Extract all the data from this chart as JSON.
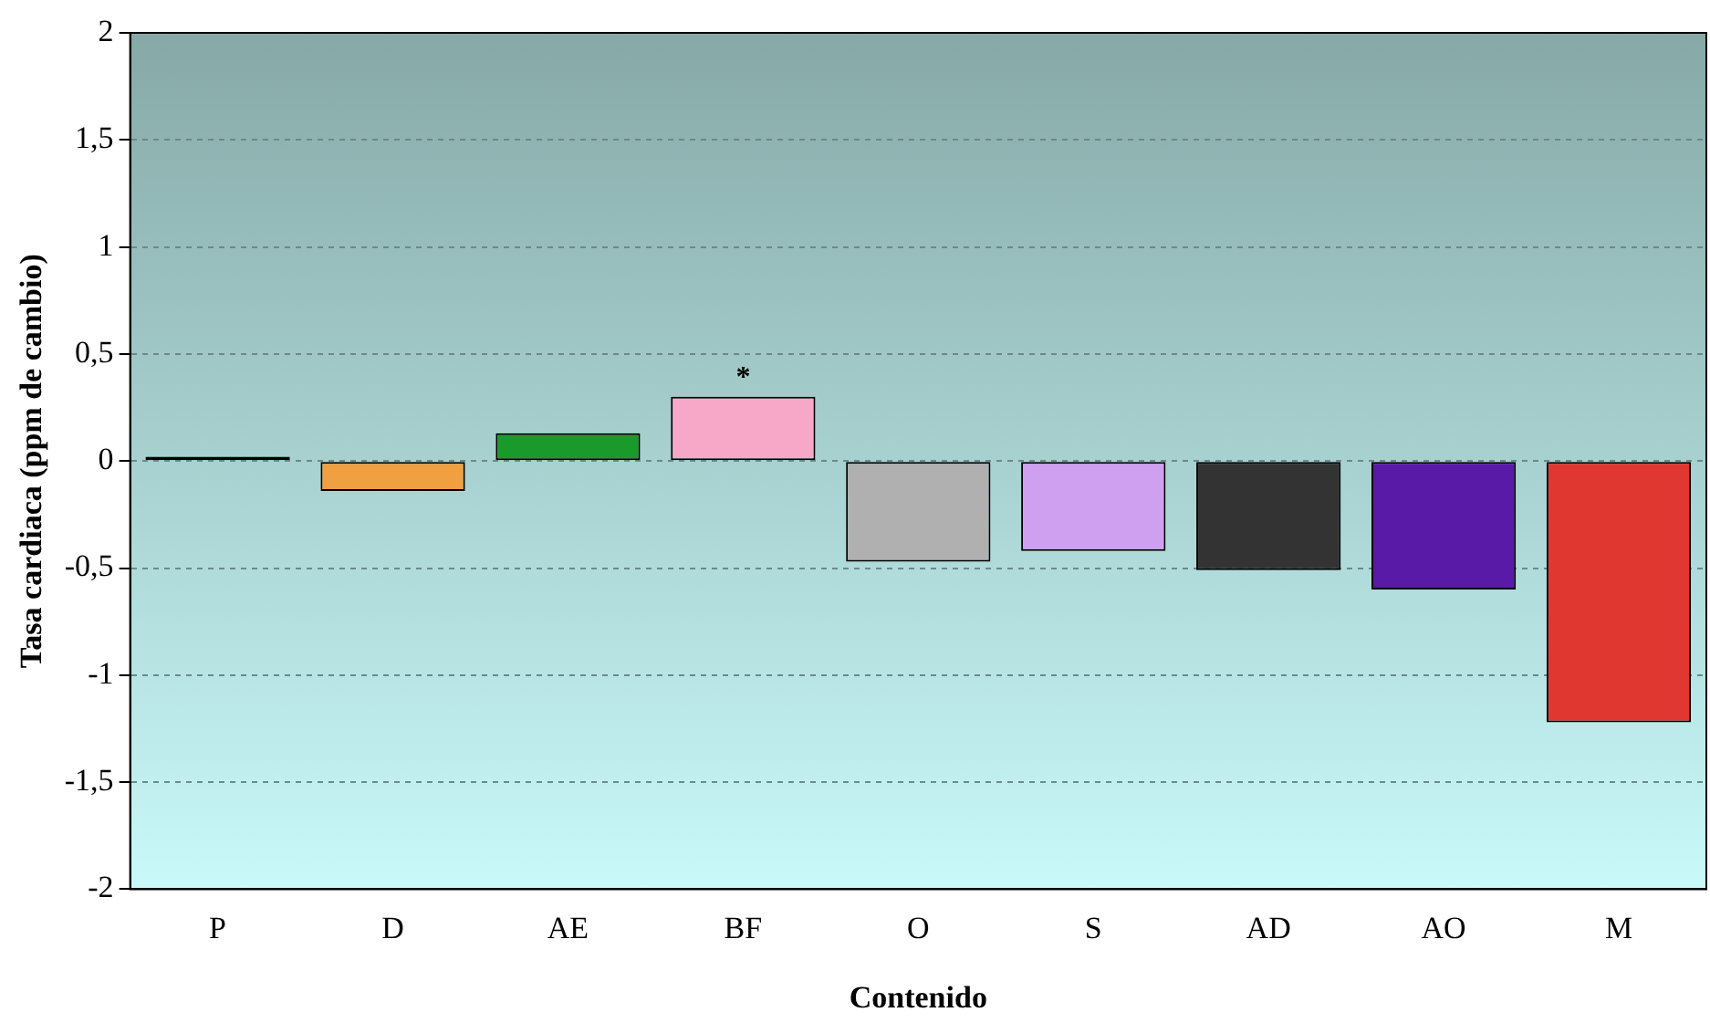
{
  "chart_data": {
    "type": "bar",
    "xlabel": "Contenido",
    "ylabel": "Tasa cardiaca (ppm de cambio)",
    "categories": [
      "P",
      "D",
      "AE",
      "BF",
      "O",
      "S",
      "AD",
      "AO",
      "M"
    ],
    "values": [
      0.02,
      -0.14,
      0.13,
      0.3,
      -0.47,
      -0.42,
      -0.51,
      -0.6,
      -1.22
    ],
    "colors": [
      "#000000",
      "#f0a040",
      "#1a9a2a",
      "#f7a8c8",
      "#b0b0b0",
      "#d0a0f0",
      "#333333",
      "#5a1aa8",
      "#e03830"
    ],
    "ylim": [
      -2,
      2
    ],
    "yticks": [
      -2,
      {
        "value": -1.5,
        "label": "-1,5"
      },
      -1,
      {
        "value": -0.5,
        "label": "-0,5"
      },
      0,
      {
        "value": 0.5,
        "label": "0,5"
      },
      1,
      {
        "value": 1.5,
        "label": "1,5"
      },
      2
    ],
    "grid": "y",
    "legend": false,
    "annotations": [
      {
        "text": "*",
        "x": "BF",
        "y": 0.3
      }
    ]
  }
}
